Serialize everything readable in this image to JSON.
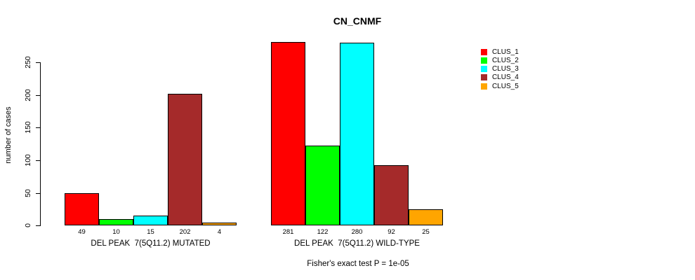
{
  "chart_data": {
    "type": "bar",
    "title": "CN_CNMF",
    "ylabel": "number of cases",
    "xlabel": "",
    "ylim": [
      0,
      290
    ],
    "yticks": [
      0,
      50,
      100,
      150,
      200,
      250
    ],
    "grid": false,
    "legend_position": "right",
    "groups": [
      {
        "label": "DEL PEAK  7(5Q11.2) MUTATED",
        "values": [
          49,
          10,
          15,
          202,
          4
        ],
        "value_labels": [
          "49",
          "10",
          "15",
          "202",
          "4"
        ]
      },
      {
        "label": "DEL PEAK  7(5Q11.2) WILD-TYPE",
        "values": [
          281,
          122,
          280,
          92,
          25
        ],
        "value_labels": [
          "281",
          "122",
          "280",
          "92",
          "25"
        ]
      }
    ],
    "series": [
      {
        "name": "CLUS_1",
        "color": "#FF0000",
        "values": [
          49,
          281
        ]
      },
      {
        "name": "CLUS_2",
        "color": "#00FF00",
        "values": [
          10,
          122
        ]
      },
      {
        "name": "CLUS_3",
        "color": "#00FFFF",
        "values": [
          15,
          280
        ]
      },
      {
        "name": "CLUS_4",
        "color": "#A52A2A",
        "values": [
          202,
          92
        ]
      },
      {
        "name": "CLUS_5",
        "color": "#FFA500",
        "values": [
          4,
          25
        ]
      }
    ],
    "annotation": "Fisher's exact test P = 1e-05"
  },
  "legend": {
    "items": [
      {
        "label": "CLUS_1",
        "color": "#FF0000"
      },
      {
        "label": "CLUS_2",
        "color": "#00FF00"
      },
      {
        "label": "CLUS_3",
        "color": "#00FFFF"
      },
      {
        "label": "CLUS_4",
        "color": "#A52A2A"
      },
      {
        "label": "CLUS_5",
        "color": "#FFA500"
      }
    ]
  },
  "colors": {
    "axis": "#000000",
    "text": "#000000",
    "background": "#FFFFFF"
  }
}
